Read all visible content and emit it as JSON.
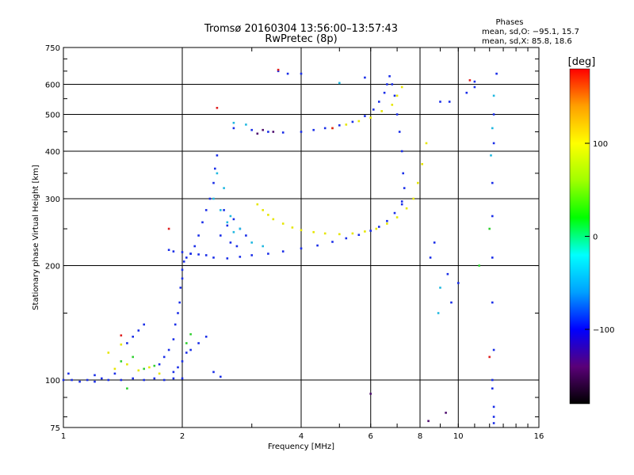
{
  "chart_data": {
    "type": "scatter",
    "title": "Tromsø 20160304 13:56:00–13:57:43",
    "subtitle": "RwPretec (8p)",
    "xlabel": "Frequency [MHz]",
    "ylabel": "Stationary phase Virtual Height [km]",
    "x_scale": "log",
    "y_scale": "log",
    "xlim": [
      1,
      16
    ],
    "ylim": [
      75,
      750
    ],
    "x_ticks": [
      1,
      2,
      4,
      6,
      8,
      10,
      16
    ],
    "x_tick_labels": [
      "1",
      "2",
      "4",
      "6",
      "8",
      "10",
      "16"
    ],
    "y_ticks": [
      75,
      100,
      200,
      300,
      400,
      500,
      600,
      750
    ],
    "y_tick_labels": [
      "75",
      "100",
      "200",
      "300",
      "400",
      "500",
      "600",
      "750"
    ],
    "grid": true,
    "stats": {
      "heading": "Phases",
      "line_o": "mean, sd,O: −95.1, 15.7",
      "line_x": "mean, sd,X: 85.8, 18.6"
    },
    "colorbar": {
      "label": "[deg]",
      "min": -180,
      "max": 180,
      "ticks": [
        100,
        0,
        -100
      ],
      "tick_labels": [
        "100",
        "0",
        "−100"
      ],
      "colors": [
        "#000000",
        "#5a0078",
        "#0000ff",
        "#00a0ff",
        "#00ffff",
        "#00ff00",
        "#a0ff00",
        "#ffff00",
        "#ffa000",
        "#ff0000"
      ]
    },
    "series": [
      {
        "phase": -95,
        "color": "#1a2ee8",
        "points": [
          [
            1.0,
            100
          ],
          [
            1.05,
            100
          ],
          [
            1.1,
            99
          ],
          [
            1.15,
            100
          ],
          [
            1.2,
            99
          ],
          [
            1.25,
            101
          ],
          [
            1.3,
            100
          ],
          [
            1.4,
            100
          ],
          [
            1.5,
            101
          ],
          [
            1.6,
            100
          ],
          [
            1.7,
            101
          ],
          [
            1.8,
            100
          ],
          [
            1.9,
            101
          ],
          [
            2.0,
            101
          ],
          [
            1.03,
            104
          ],
          [
            1.2,
            103
          ],
          [
            1.35,
            104
          ],
          [
            1.5,
            130
          ],
          [
            1.45,
            125
          ],
          [
            1.6,
            140
          ],
          [
            1.55,
            135
          ],
          [
            1.75,
            110
          ],
          [
            1.8,
            115
          ],
          [
            1.85,
            120
          ],
          [
            1.9,
            128
          ],
          [
            1.92,
            140
          ],
          [
            1.95,
            150
          ],
          [
            1.97,
            160
          ],
          [
            1.98,
            175
          ],
          [
            2.0,
            185
          ],
          [
            2.0,
            195
          ],
          [
            2.02,
            205
          ],
          [
            2.05,
            210
          ],
          [
            2.1,
            215
          ],
          [
            2.15,
            225
          ],
          [
            2.2,
            240
          ],
          [
            2.25,
            260
          ],
          [
            2.3,
            280
          ],
          [
            2.35,
            300
          ],
          [
            2.4,
            330
          ],
          [
            2.42,
            360
          ],
          [
            2.45,
            390
          ],
          [
            1.9,
            105
          ],
          [
            1.95,
            108
          ],
          [
            2.0,
            112
          ],
          [
            2.05,
            118
          ],
          [
            2.1,
            120
          ],
          [
            2.2,
            125
          ],
          [
            2.3,
            130
          ],
          [
            2.4,
            105
          ],
          [
            2.5,
            102
          ],
          [
            1.85,
            220
          ],
          [
            1.9,
            218
          ],
          [
            2.0,
            217
          ],
          [
            2.1,
            215
          ],
          [
            2.2,
            214
          ],
          [
            2.3,
            213
          ],
          [
            2.4,
            210
          ],
          [
            2.6,
            209
          ],
          [
            2.8,
            211
          ],
          [
            3.0,
            213
          ],
          [
            3.3,
            215
          ],
          [
            3.6,
            218
          ],
          [
            4.0,
            222
          ],
          [
            4.4,
            226
          ],
          [
            4.8,
            231
          ],
          [
            5.2,
            236
          ],
          [
            5.6,
            241
          ],
          [
            6.0,
            247
          ],
          [
            6.3,
            253
          ],
          [
            6.6,
            262
          ],
          [
            6.9,
            275
          ],
          [
            7.2,
            295
          ],
          [
            2.5,
            240
          ],
          [
            2.6,
            255
          ],
          [
            2.7,
            265
          ],
          [
            2.8,
            250
          ],
          [
            2.9,
            240
          ],
          [
            2.55,
            280
          ],
          [
            2.65,
            230
          ],
          [
            2.75,
            225
          ],
          [
            2.7,
            460
          ],
          [
            3.0,
            455
          ],
          [
            3.3,
            450
          ],
          [
            3.6,
            448
          ],
          [
            4.0,
            450
          ],
          [
            4.3,
            455
          ],
          [
            4.6,
            460
          ],
          [
            5.0,
            468
          ],
          [
            5.4,
            478
          ],
          [
            5.8,
            495
          ],
          [
            6.1,
            515
          ],
          [
            6.3,
            540
          ],
          [
            6.5,
            570
          ],
          [
            6.6,
            600
          ],
          [
            6.7,
            630
          ],
          [
            6.8,
            600
          ],
          [
            6.9,
            560
          ],
          [
            7.0,
            500
          ],
          [
            7.1,
            450
          ],
          [
            7.2,
            400
          ],
          [
            7.25,
            350
          ],
          [
            7.3,
            320
          ],
          [
            7.2,
            290
          ],
          [
            3.5,
            650
          ],
          [
            3.7,
            640
          ],
          [
            4.0,
            640
          ],
          [
            5.8,
            625
          ],
          [
            10.5,
            570
          ],
          [
            11.0,
            610
          ],
          [
            12.5,
            640
          ],
          [
            12.3,
            500
          ],
          [
            12.3,
            420
          ],
          [
            12.2,
            330
          ],
          [
            12.2,
            270
          ],
          [
            12.2,
            210
          ],
          [
            12.2,
            160
          ],
          [
            12.3,
            120
          ],
          [
            12.2,
            100
          ],
          [
            12.2,
            95
          ],
          [
            12.3,
            85
          ],
          [
            12.3,
            80
          ],
          [
            12.3,
            77
          ],
          [
            9.0,
            540
          ],
          [
            9.5,
            540
          ],
          [
            9.4,
            190
          ],
          [
            9.6,
            160
          ],
          [
            8.7,
            230
          ],
          [
            8.5,
            210
          ],
          [
            10.0,
            180
          ],
          [
            11.0,
            590
          ]
        ]
      },
      {
        "phase": 100,
        "color": "#e6e600",
        "points": [
          [
            3.1,
            290
          ],
          [
            3.2,
            280
          ],
          [
            3.3,
            272
          ],
          [
            3.4,
            265
          ],
          [
            3.6,
            258
          ],
          [
            3.8,
            252
          ],
          [
            4.0,
            248
          ],
          [
            4.3,
            245
          ],
          [
            4.6,
            243
          ],
          [
            5.0,
            242
          ],
          [
            5.4,
            243
          ],
          [
            5.8,
            246
          ],
          [
            6.2,
            250
          ],
          [
            6.6,
            258
          ],
          [
            7.0,
            268
          ],
          [
            7.4,
            283
          ],
          [
            7.7,
            300
          ],
          [
            7.9,
            330
          ],
          [
            8.1,
            370
          ],
          [
            8.3,
            420
          ],
          [
            4.8,
            460
          ],
          [
            5.2,
            470
          ],
          [
            5.6,
            480
          ],
          [
            6.0,
            490
          ],
          [
            6.4,
            510
          ],
          [
            6.8,
            530
          ],
          [
            7.0,
            560
          ],
          [
            7.2,
            590
          ],
          [
            1.35,
            107
          ],
          [
            1.45,
            110
          ],
          [
            1.55,
            106
          ],
          [
            1.65,
            108
          ],
          [
            1.75,
            104
          ],
          [
            1.3,
            118
          ],
          [
            1.4,
            124
          ]
        ]
      },
      {
        "phase": -20,
        "color": "#20b8e0",
        "points": [
          [
            2.4,
            300
          ],
          [
            2.5,
            280
          ],
          [
            2.6,
            260
          ],
          [
            2.7,
            245
          ],
          [
            2.45,
            350
          ],
          [
            2.55,
            320
          ],
          [
            2.65,
            270
          ],
          [
            2.8,
            250
          ],
          [
            3.0,
            230
          ],
          [
            3.2,
            225
          ],
          [
            2.7,
            475
          ],
          [
            2.9,
            470
          ],
          [
            5.0,
            605
          ],
          [
            8.9,
            150
          ],
          [
            9.0,
            175
          ],
          [
            12.3,
            560
          ],
          [
            12.2,
            460
          ],
          [
            12.1,
            390
          ]
        ]
      },
      {
        "phase": 30,
        "color": "#30d030",
        "points": [
          [
            1.4,
            112
          ],
          [
            1.5,
            115
          ],
          [
            1.6,
            107
          ],
          [
            1.7,
            109
          ],
          [
            2.05,
            125
          ],
          [
            2.1,
            132
          ],
          [
            1.45,
            95
          ],
          [
            12.0,
            250
          ],
          [
            11.3,
            200
          ]
        ]
      },
      {
        "phase": 160,
        "color": "#e02020",
        "points": [
          [
            1.4,
            131
          ],
          [
            1.85,
            250
          ],
          [
            2.45,
            520
          ],
          [
            4.8,
            460
          ],
          [
            12.0,
            115
          ],
          [
            10.7,
            615
          ],
          [
            3.5,
            655
          ]
        ]
      },
      {
        "phase": -150,
        "color": "#501070",
        "points": [
          [
            3.2,
            455
          ],
          [
            3.4,
            450
          ],
          [
            3.1,
            445
          ],
          [
            9.3,
            82
          ],
          [
            8.4,
            78
          ],
          [
            6.0,
            92
          ]
        ]
      }
    ]
  }
}
